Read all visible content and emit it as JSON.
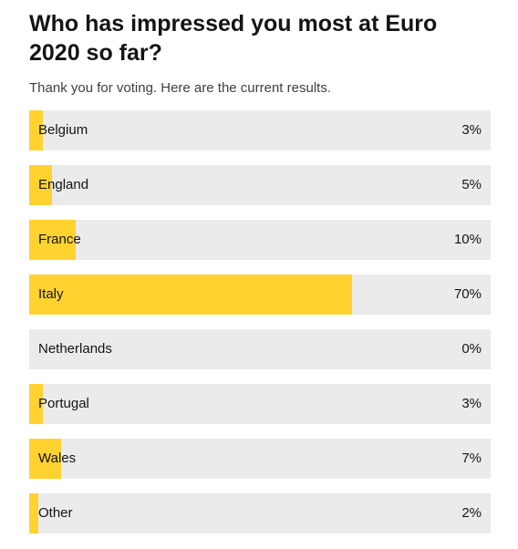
{
  "poll": {
    "title": "Who has impressed you most at Euro 2020 so far?",
    "subtitle": "Thank you for voting. Here are the current results.",
    "accent_color": "#ffd230",
    "track_color": "#ebebeb",
    "results": [
      {
        "label": "Belgium",
        "percent_text": "3%",
        "percent": 3
      },
      {
        "label": "England",
        "percent_text": "5%",
        "percent": 5
      },
      {
        "label": "France",
        "percent_text": "10%",
        "percent": 10
      },
      {
        "label": "Italy",
        "percent_text": "70%",
        "percent": 70
      },
      {
        "label": "Netherlands",
        "percent_text": "0%",
        "percent": 0
      },
      {
        "label": "Portugal",
        "percent_text": "3%",
        "percent": 3
      },
      {
        "label": "Wales",
        "percent_text": "7%",
        "percent": 7
      },
      {
        "label": "Other",
        "percent_text": "2%",
        "percent": 2
      }
    ]
  }
}
